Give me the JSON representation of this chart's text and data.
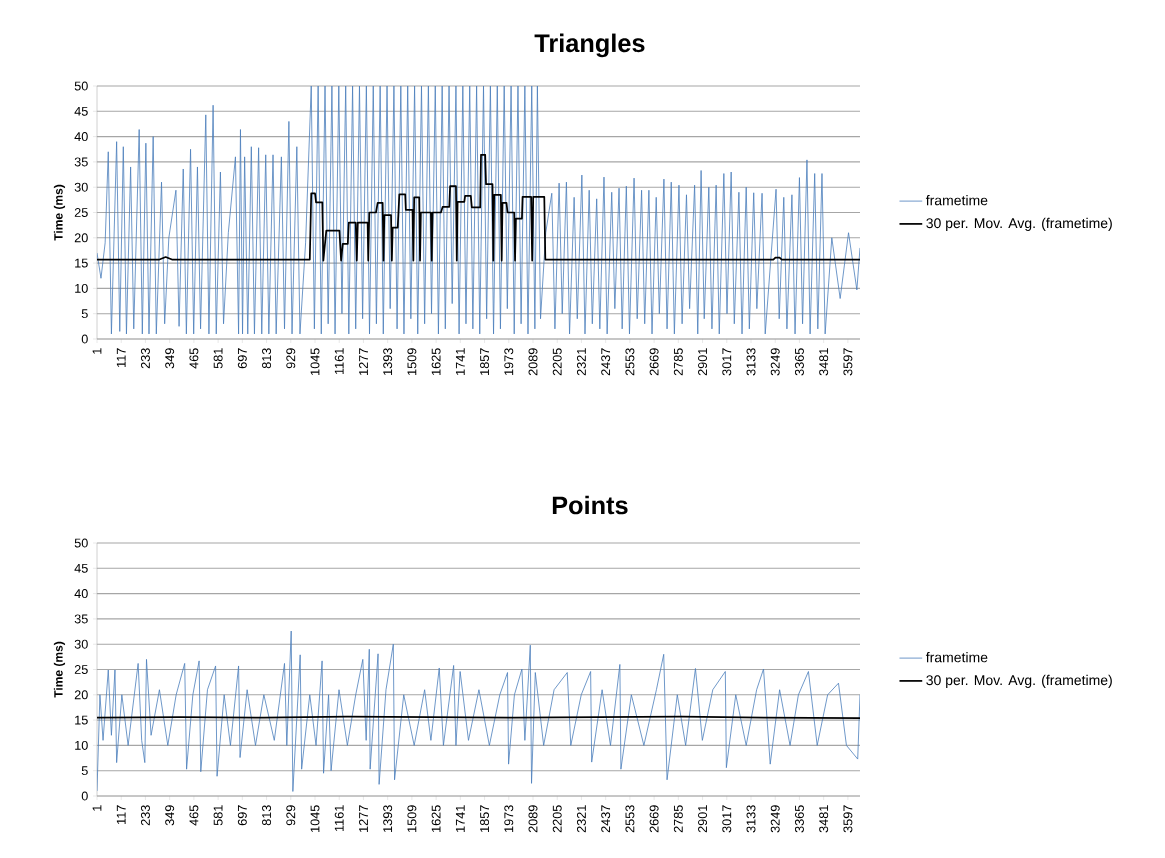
{
  "chart_data": [
    {
      "type": "line",
      "title": "Triangles",
      "ylabel": "Time (ms)",
      "xlim": [
        1,
        3655
      ],
      "ylim": [
        0,
        50
      ],
      "xticks": [
        1,
        117,
        233,
        349,
        465,
        581,
        697,
        813,
        929,
        1045,
        1161,
        1277,
        1393,
        1509,
        1625,
        1741,
        1857,
        1973,
        2089,
        2205,
        2321,
        2437,
        2553,
        2669,
        2785,
        2901,
        3017,
        3133,
        3249,
        3365,
        3481,
        3597
      ],
      "yticks": [
        0,
        5,
        10,
        15,
        20,
        25,
        30,
        35,
        40,
        45,
        50
      ],
      "grid": "y",
      "legend": "right",
      "marker": "none",
      "series": [
        {
          "name": "frametime",
          "color": "#4a7ebb",
          "x": [
            1,
            20,
            40,
            55,
            70,
            95,
            110,
            127,
            142,
            162,
            177,
            203,
            218,
            235,
            250,
            270,
            285,
            310,
            325,
            345,
            379,
            394,
            414,
            429,
            449,
            464,
            482,
            497,
            522,
            537,
            557,
            572,
            592,
            607,
            630,
            664,
            679,
            688,
            698,
            708,
            723,
            740,
            755,
            775,
            790,
            809,
            824,
            844,
            859,
            884,
            899,
            920,
            935,
            958,
            973,
            1000,
            1027,
            1042,
            1060,
            1075,
            1093,
            1108,
            1126,
            1141,
            1159,
            1174,
            1192,
            1207,
            1225,
            1240,
            1258,
            1273,
            1291,
            1306,
            1324,
            1339,
            1357,
            1372,
            1390,
            1405,
            1423,
            1438,
            1456,
            1471,
            1489,
            1504,
            1522,
            1537,
            1555,
            1570,
            1588,
            1603,
            1621,
            1636,
            1654,
            1669,
            1687,
            1702,
            1720,
            1735,
            1753,
            1768,
            1786,
            1801,
            1819,
            1834,
            1852,
            1867,
            1885,
            1900,
            1918,
            1933,
            1951,
            1966,
            1984,
            1999,
            2017,
            2032,
            2050,
            2065,
            2083,
            2098,
            2110,
            2125,
            2150,
            2179,
            2194,
            2214,
            2229,
            2249,
            2264,
            2286,
            2301,
            2323,
            2338,
            2358,
            2373,
            2394,
            2409,
            2429,
            2444,
            2466,
            2481,
            2501,
            2516,
            2536,
            2551,
            2573,
            2588,
            2609,
            2624,
            2644,
            2659,
            2679,
            2694,
            2716,
            2731,
            2751,
            2766,
            2788,
            2803,
            2824,
            2839,
            2863,
            2878,
            2894,
            2909,
            2931,
            2946,
            2966,
            2981,
            3003,
            3018,
            3038,
            3053,
            3075,
            3090,
            3110,
            3125,
            3146,
            3161,
            3186,
            3201,
            3253,
            3268,
            3290,
            3305,
            3329,
            3344,
            3365,
            3380,
            3401,
            3416,
            3438,
            3453,
            3473,
            3488,
            3520,
            3560,
            3600,
            3640,
            3655
          ],
          "values": [
            17,
            12,
            19,
            37,
            1,
            39,
            1.5,
            38,
            1,
            34,
            2,
            41.4,
            1,
            38.7,
            1,
            40,
            1,
            31,
            3,
            20,
            29.4,
            2.5,
            33.6,
            1,
            37.5,
            1,
            34,
            2,
            44.3,
            1,
            46.2,
            1,
            33,
            3,
            21,
            36,
            1,
            41.4,
            1,
            36,
            1,
            38,
            1,
            37.8,
            1,
            36.4,
            1,
            36.4,
            1,
            36,
            2,
            43,
            1,
            38,
            1,
            19,
            50,
            2,
            50,
            1,
            50,
            3,
            50,
            1,
            50,
            5,
            50,
            1,
            50,
            2,
            50,
            4,
            50,
            1,
            50,
            3,
            50,
            1,
            50,
            6,
            50,
            2,
            50,
            1,
            50,
            4,
            50,
            1,
            50,
            3,
            50,
            5,
            50,
            1,
            50,
            2,
            50,
            7,
            50,
            1,
            50,
            3,
            50,
            2,
            50,
            1,
            50,
            4,
            50,
            1,
            50,
            2,
            50,
            6,
            50,
            1,
            50,
            3,
            50,
            1,
            50,
            2,
            50,
            4,
            21,
            28.8,
            2,
            30.8,
            5,
            31,
            1,
            28,
            4,
            32.4,
            1,
            29.4,
            3,
            27.7,
            2,
            32,
            1,
            29,
            6,
            29.8,
            2,
            30.2,
            1,
            31.8,
            4,
            29.4,
            3,
            29.4,
            1,
            28,
            5,
            31.6,
            2,
            31,
            1,
            30.4,
            3,
            28.5,
            6,
            30.4,
            1,
            33.3,
            4,
            30,
            2,
            30.4,
            1,
            32.7,
            5,
            33,
            3,
            29,
            1,
            30,
            2,
            28.9,
            6,
            28.8,
            1,
            29.6,
            4,
            28,
            2,
            28.5,
            1,
            31.9,
            3,
            35.4,
            1,
            32.7,
            2,
            32.7,
            1,
            20,
            8,
            21,
            9.7,
            18
          ]
        },
        {
          "name": "30 per. Mov. Avg. (frametime)",
          "color": "#000000",
          "x": [
            1,
            300,
            330,
            360,
            1020,
            1027,
            1045,
            1050,
            1080,
            1085,
            1099,
            1162,
            1170,
            1178,
            1202,
            1207,
            1240,
            1245,
            1250,
            1297,
            1300,
            1305,
            1337,
            1345,
            1369,
            1373,
            1377,
            1409,
            1413,
            1417,
            1441,
            1449,
            1477,
            1480,
            1512,
            1516,
            1520,
            1544,
            1548,
            1552,
            1600,
            1604,
            1608,
            1648,
            1656,
            1688,
            1692,
            1720,
            1724,
            1728,
            1760,
            1764,
            1791,
            1796,
            1836,
            1840,
            1860,
            1864,
            1895,
            1899,
            1903,
            1935,
            1939,
            1943,
            1962,
            1967,
            1999,
            2003,
            2007,
            2036,
            2039,
            2080,
            2085,
            2090,
            2143,
            2148,
            3240,
            3250,
            3270,
            3280,
            3655
          ],
          "values": [
            15.7,
            15.7,
            16.2,
            15.7,
            15.7,
            28.8,
            28.8,
            27.0,
            27.0,
            15.5,
            21.4,
            21.4,
            15.5,
            18.8,
            18.8,
            23.0,
            23.0,
            15.5,
            23.0,
            23.0,
            15.5,
            25.0,
            25.0,
            26.9,
            26.9,
            15.5,
            24.5,
            24.5,
            15.5,
            22.0,
            22.0,
            28.6,
            28.6,
            25.5,
            25.5,
            15.5,
            28.0,
            28.0,
            15.5,
            25.0,
            25.0,
            15.5,
            25.0,
            25.0,
            26.1,
            26.1,
            30.2,
            30.2,
            15.5,
            27.1,
            27.1,
            28.3,
            28.3,
            26.0,
            26.0,
            36.4,
            36.4,
            30.6,
            30.6,
            15.5,
            28.5,
            28.5,
            15.5,
            26.9,
            26.9,
            25.0,
            25.0,
            15.5,
            23.8,
            23.8,
            28.1,
            28.1,
            15.5,
            28.1,
            28.1,
            15.7,
            15.7,
            16.1,
            16.1,
            15.7,
            15.7
          ]
        }
      ]
    },
    {
      "type": "line",
      "title": "Points",
      "ylabel": "Time (ms)",
      "xlim": [
        1,
        3655
      ],
      "ylim": [
        0,
        50
      ],
      "xticks": [
        1,
        117,
        233,
        349,
        465,
        581,
        697,
        813,
        929,
        1045,
        1161,
        1277,
        1393,
        1509,
        1625,
        1741,
        1857,
        1973,
        2089,
        2205,
        2321,
        2437,
        2553,
        2669,
        2785,
        2901,
        3017,
        3133,
        3249,
        3365,
        3481,
        3597
      ],
      "yticks": [
        0,
        5,
        10,
        15,
        20,
        25,
        30,
        35,
        40,
        45,
        50
      ],
      "grid": "y",
      "legend": "right",
      "marker": "none",
      "series": [
        {
          "name": "frametime",
          "color": "#4a7ebb",
          "x": [
            1,
            15,
            30,
            55,
            70,
            87,
            95,
            120,
            150,
            198,
            215,
            230,
            238,
            260,
            300,
            340,
            380,
            421,
            430,
            460,
            490,
            498,
            530,
            569,
            576,
            610,
            640,
            679,
            686,
            720,
            760,
            800,
            850,
            899,
            910,
            931,
            939,
            974,
            981,
            1020,
            1050,
            1079,
            1086,
            1110,
            1122,
            1160,
            1200,
            1240,
            1274,
            1290,
            1305,
            1309,
            1347,
            1352,
            1385,
            1420,
            1426,
            1470,
            1520,
            1570,
            1600,
            1640,
            1660,
            1709,
            1720,
            1740,
            1780,
            1830,
            1880,
            1930,
            1967,
            1972,
            2000,
            2036,
            2050,
            2076,
            2082,
            2100,
            2140,
            2190,
            2253,
            2270,
            2320,
            2365,
            2370,
            2420,
            2460,
            2505,
            2510,
            2560,
            2620,
            2680,
            2715,
            2731,
            2780,
            2820,
            2867,
            2900,
            2950,
            3010,
            3015,
            3060,
            3110,
            3160,
            3193,
            3225,
            3270,
            3320,
            3360,
            3408,
            3450,
            3500,
            3552,
            3590,
            3644,
            3655
          ],
          "values": [
            1,
            20,
            11,
            24.9,
            12,
            24.9,
            6.6,
            20,
            10,
            26.2,
            11,
            6.6,
            27,
            12,
            21,
            10,
            20,
            26.2,
            5.3,
            20,
            26.7,
            4.8,
            21,
            25.7,
            3.9,
            20,
            10,
            25.7,
            7.6,
            21,
            10,
            20,
            11,
            26.2,
            10,
            32.6,
            0.9,
            27.9,
            5.3,
            20,
            10,
            26.7,
            4.5,
            20,
            5,
            21,
            10,
            20,
            27,
            11,
            29,
            5.3,
            28.1,
            2.3,
            21,
            30,
            3.2,
            20,
            10,
            21,
            11,
            25.3,
            10,
            25.8,
            10,
            24.6,
            11,
            21,
            10,
            20,
            24.4,
            6.3,
            20,
            25.1,
            11,
            29.8,
            2.5,
            24.4,
            10,
            21,
            24.4,
            10,
            20,
            24.6,
            6.7,
            21,
            10,
            26,
            5.3,
            20,
            10,
            21,
            28,
            3.2,
            20,
            10,
            25.2,
            11,
            21,
            24.6,
            5.6,
            20,
            10,
            21,
            25.1,
            6.3,
            21,
            10,
            20,
            24.6,
            10,
            20,
            22.3,
            10,
            7.3,
            20
          ]
        },
        {
          "name": "30 per. Mov. Avg. (frametime)",
          "color": "#000000",
          "x": [
            1,
            400,
            800,
            1200,
            1600,
            2000,
            2400,
            2800,
            3200,
            3655
          ],
          "values": [
            15.5,
            15.6,
            15.5,
            15.7,
            15.6,
            15.5,
            15.6,
            15.7,
            15.5,
            15.4
          ]
        }
      ]
    }
  ]
}
